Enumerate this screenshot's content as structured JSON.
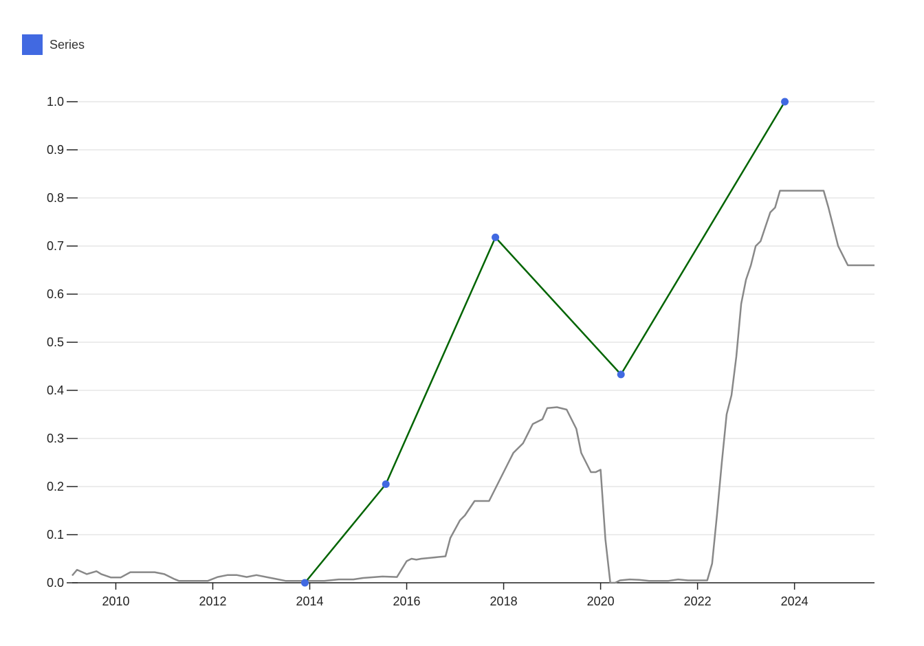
{
  "legend": {
    "label": "Series",
    "color": "#4169e1"
  },
  "colors": {
    "main_line": "#006400",
    "point": "#4169e1",
    "background_line": "#888888",
    "grid": "#e6e6e6",
    "axis": "#222222"
  },
  "chart_data": {
    "type": "line",
    "title": "",
    "xlabel": "",
    "ylabel": "",
    "xlim": [
      2009.1,
      2025.65
    ],
    "ylim": [
      0,
      1.0
    ],
    "grid": true,
    "legend_position": "top-left",
    "x_ticks": [
      2010,
      2012,
      2014,
      2016,
      2018,
      2020,
      2022,
      2024
    ],
    "y_ticks": [
      0.0,
      0.1,
      0.2,
      0.3,
      0.4,
      0.5,
      0.6,
      0.7,
      0.8,
      0.9,
      1.0
    ],
    "series": [
      {
        "name": "Series",
        "style": "line+markers",
        "x": [
          2013.9,
          2015.57,
          2017.83,
          2020.42,
          2023.8
        ],
        "y": [
          0.0,
          0.205,
          0.718,
          0.433,
          1.0
        ]
      },
      {
        "style": "line",
        "x": [
          2009.1,
          2009.2,
          2009.4,
          2009.6,
          2009.7,
          2009.9,
          2010.1,
          2010.3,
          2010.4,
          2010.6,
          2010.8,
          2011.0,
          2011.2,
          2011.3,
          2011.5,
          2011.7,
          2011.9,
          2012.1,
          2012.3,
          2012.5,
          2012.7,
          2012.9,
          2013.1,
          2013.3,
          2013.5,
          2013.7,
          2014.0,
          2014.3,
          2014.6,
          2014.9,
          2015.1,
          2015.5,
          2015.8,
          2016.0,
          2016.1,
          2016.2,
          2016.3,
          2016.5,
          2016.8,
          2016.9,
          2017.1,
          2017.2,
          2017.4,
          2017.6,
          2017.7,
          2017.9,
          2018.1,
          2018.2,
          2018.4,
          2018.6,
          2018.8,
          2018.9,
          2019.1,
          2019.3,
          2019.5,
          2019.6,
          2019.8,
          2019.9,
          2020.0,
          2020.1,
          2020.2,
          2020.3,
          2020.4,
          2020.6,
          2020.8,
          2021.0,
          2021.4,
          2021.6,
          2021.8,
          2022.2,
          2022.3,
          2022.4,
          2022.5,
          2022.6,
          2022.7,
          2022.8,
          2022.9,
          2023.0,
          2023.1,
          2023.2,
          2023.3,
          2023.4,
          2023.5,
          2023.6,
          2023.7,
          2023.9,
          2024.6,
          2024.7,
          2024.8,
          2024.9,
          2025.1,
          2025.65
        ],
        "y": [
          0.015,
          0.027,
          0.018,
          0.024,
          0.018,
          0.011,
          0.011,
          0.022,
          0.022,
          0.022,
          0.022,
          0.018,
          0.008,
          0.004,
          0.004,
          0.004,
          0.004,
          0.012,
          0.016,
          0.016,
          0.012,
          0.016,
          0.012,
          0.008,
          0.004,
          0.004,
          0.004,
          0.004,
          0.007,
          0.007,
          0.01,
          0.013,
          0.012,
          0.045,
          0.05,
          0.048,
          0.05,
          0.052,
          0.055,
          0.093,
          0.13,
          0.14,
          0.17,
          0.17,
          0.17,
          0.21,
          0.25,
          0.27,
          0.29,
          0.33,
          0.34,
          0.363,
          0.365,
          0.36,
          0.32,
          0.27,
          0.23,
          0.23,
          0.235,
          0.09,
          0.0,
          0.0,
          0.005,
          0.007,
          0.006,
          0.004,
          0.004,
          0.007,
          0.005,
          0.005,
          0.04,
          0.14,
          0.25,
          0.35,
          0.39,
          0.47,
          0.58,
          0.63,
          0.66,
          0.7,
          0.71,
          0.74,
          0.77,
          0.78,
          0.815,
          0.815,
          0.815,
          0.78,
          0.74,
          0.7,
          0.66,
          0.66
        ]
      }
    ]
  }
}
